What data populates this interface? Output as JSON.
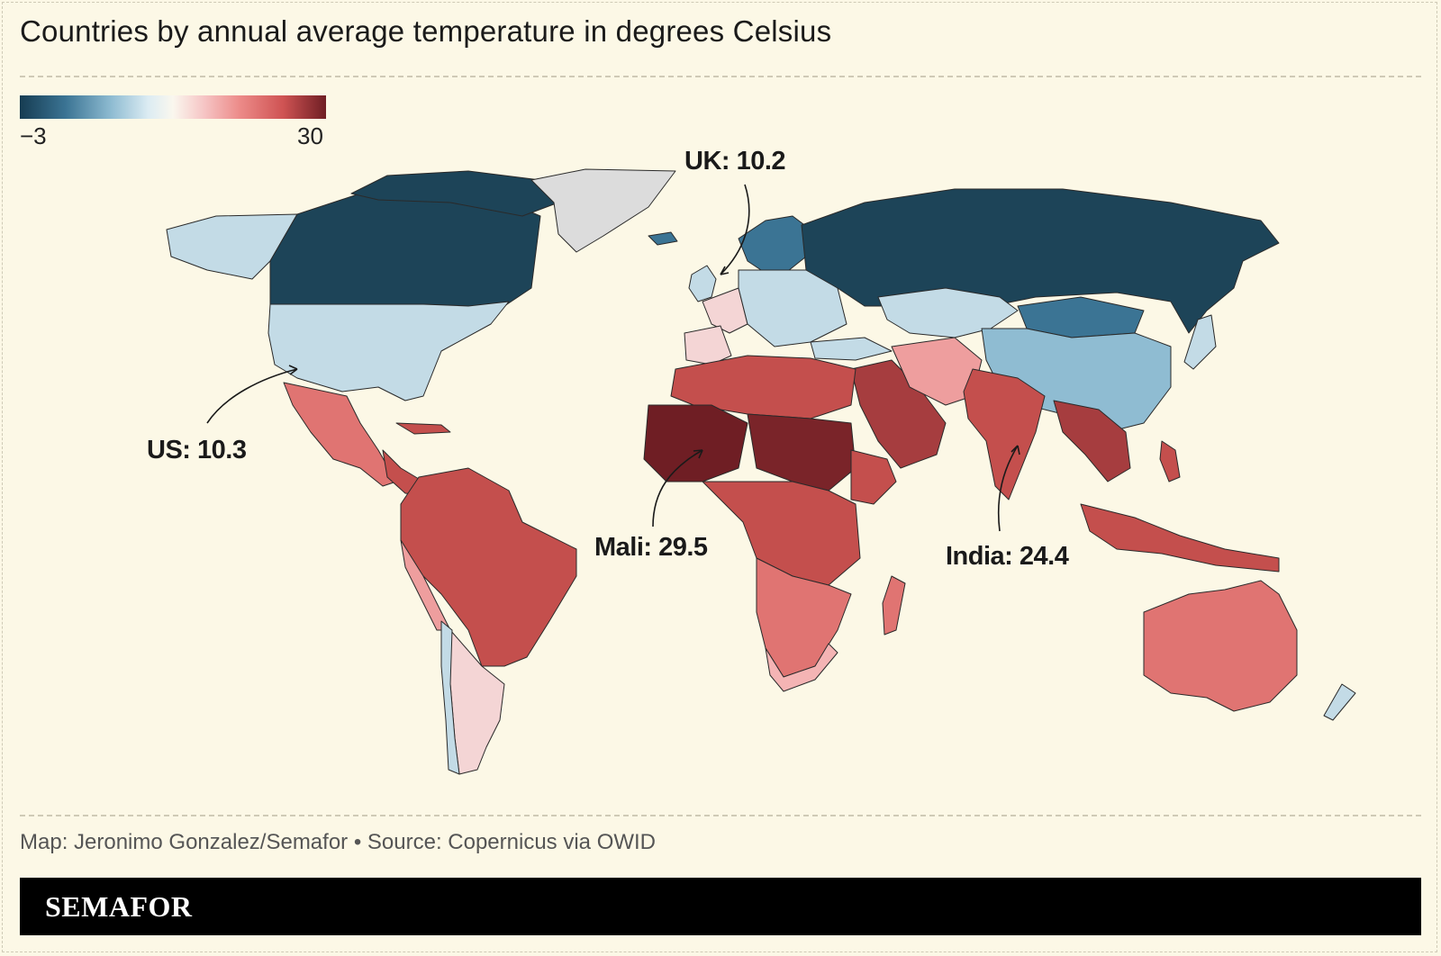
{
  "title": "Countries by annual average temperature in degrees Celsius",
  "legend": {
    "min_label": "−3",
    "max_label": "30",
    "min": -3,
    "max": 30
  },
  "callouts": [
    {
      "id": "uk",
      "label": "UK: 10.2"
    },
    {
      "id": "us",
      "label": "US: 10.3"
    },
    {
      "id": "mali",
      "label": "Mali: 29.5"
    },
    {
      "id": "india",
      "label": "India: 24.4"
    }
  ],
  "credit": "Map: Jeronimo Gonzalez/Semafor • Source: Copernicus via OWID",
  "brand": "SEMAFOR",
  "colors": {
    "background": "#fcf8e6",
    "coldest": "#163c52",
    "cold": "#c3dbe6",
    "mild": "#f4d5d5",
    "warm": "#e07472",
    "hot": "#c44f4d",
    "hottest": "#6f1e24",
    "no_data": "#dcdcdc"
  },
  "chart_data": {
    "type": "choropleth",
    "values": {
      "United Kingdom": 10.2,
      "United States": 10.3,
      "Mali": 29.5,
      "India": 24.4
    }
  }
}
